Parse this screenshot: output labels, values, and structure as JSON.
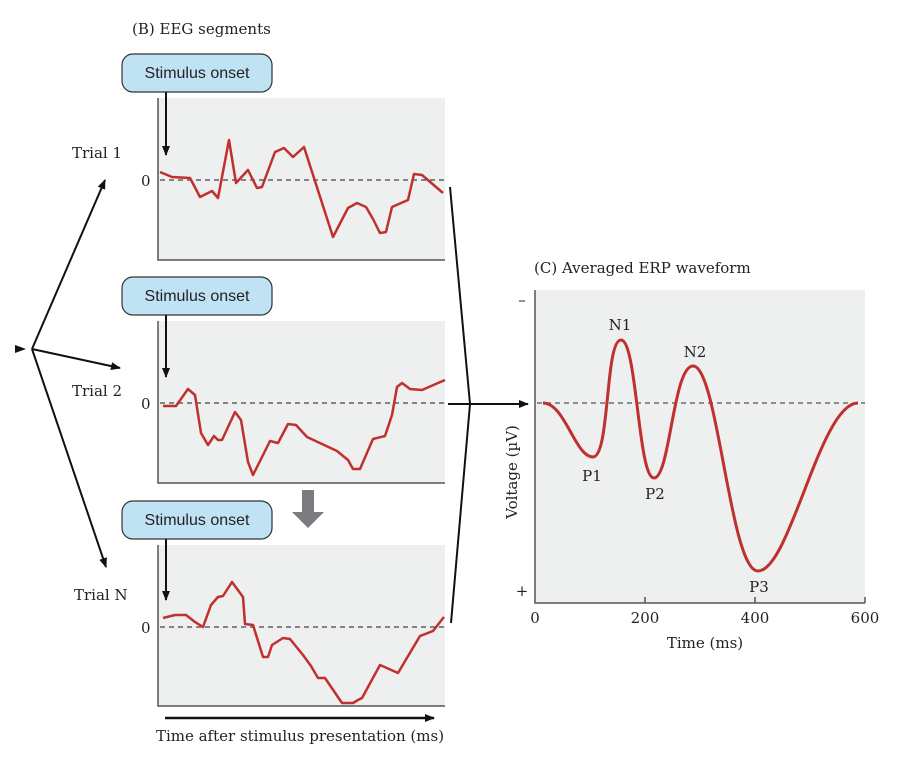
{
  "panel_b": {
    "title": "(B)  EEG segments",
    "stimulus_label": "Stimulus onset",
    "zero_label": "0",
    "trials": [
      {
        "label": "Trial 1"
      },
      {
        "label": "Trial 2"
      },
      {
        "label": "Trial N"
      }
    ],
    "x_axis_label": "Time after stimulus presentation (ms)"
  },
  "panel_c": {
    "title": "(C)  Averaged ERP waveform",
    "y_axis_label": "Voltage (µV)",
    "y_top": "–",
    "y_bottom": "+",
    "x_axis_label": "Time (ms)",
    "x_ticks": [
      "0",
      "200",
      "400",
      "600"
    ],
    "components": [
      {
        "name": "P1",
        "time_ms": 105
      },
      {
        "name": "N1",
        "time_ms": 157
      },
      {
        "name": "P2",
        "time_ms": 216
      },
      {
        "name": "N2",
        "time_ms": 287
      },
      {
        "name": "P3",
        "time_ms": 405
      }
    ]
  },
  "colors": {
    "trace": "#c0302f",
    "panel_bg": "#eeefef",
    "box_fill": "#bfe3f3",
    "arrow_gray": "#7b7c80"
  }
}
